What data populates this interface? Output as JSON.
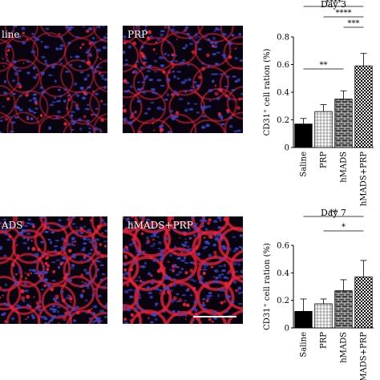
{
  "panels": {
    "top_left": {
      "label": "line"
    },
    "top_right": {
      "label": "PRP"
    },
    "bottom_left": {
      "label": "ADS"
    },
    "bottom_right": {
      "label": "hMADS+PRP"
    }
  },
  "colors": {
    "tissue_background": "#0a0410",
    "nuclei": "#3c46c8",
    "cd31_stain": "#e8233a",
    "bar_saline": "#000000",
    "bar_prp": "#ffffff",
    "bar_hmads": "#404040",
    "bar_hmads_prp": "#ffffff"
  },
  "chart_data": [
    {
      "type": "bar",
      "title": "Day 3",
      "ylabel": "CD31⁺ cell ration (%)",
      "categories": [
        "Saline",
        "PRP",
        "hMADS",
        "hMADS+PRP"
      ],
      "values": [
        0.17,
        0.26,
        0.35,
        0.59
      ],
      "errors": [
        0.04,
        0.05,
        0.06,
        0.09
      ],
      "ylim": [
        0,
        0.8
      ],
      "yticks": [
        "0",
        "0.2",
        "0.4",
        "0.6",
        "0.8"
      ],
      "significance": [
        {
          "from": 0,
          "to": 3,
          "label": "****"
        },
        {
          "from": 1,
          "to": 3,
          "label": "****"
        },
        {
          "from": 2,
          "to": 3,
          "label": "***"
        },
        {
          "from": 0,
          "to": 2,
          "label": "**"
        }
      ]
    },
    {
      "type": "bar",
      "title": "Day 7",
      "ylabel": "CD31⁺ cell ration (%)",
      "categories": [
        "Saline",
        "PRP",
        "hMADS",
        "hMADS+PRP"
      ],
      "values": [
        0.12,
        0.175,
        0.27,
        0.37
      ],
      "errors": [
        0.09,
        0.035,
        0.08,
        0.12
      ],
      "ylim": [
        0,
        0.6
      ],
      "yticks": [
        "0",
        "0.2",
        "0.4",
        "0.6"
      ],
      "significance": [
        {
          "from": 0,
          "to": 3,
          "label": "**"
        },
        {
          "from": 1,
          "to": 3,
          "label": "*"
        }
      ]
    }
  ]
}
